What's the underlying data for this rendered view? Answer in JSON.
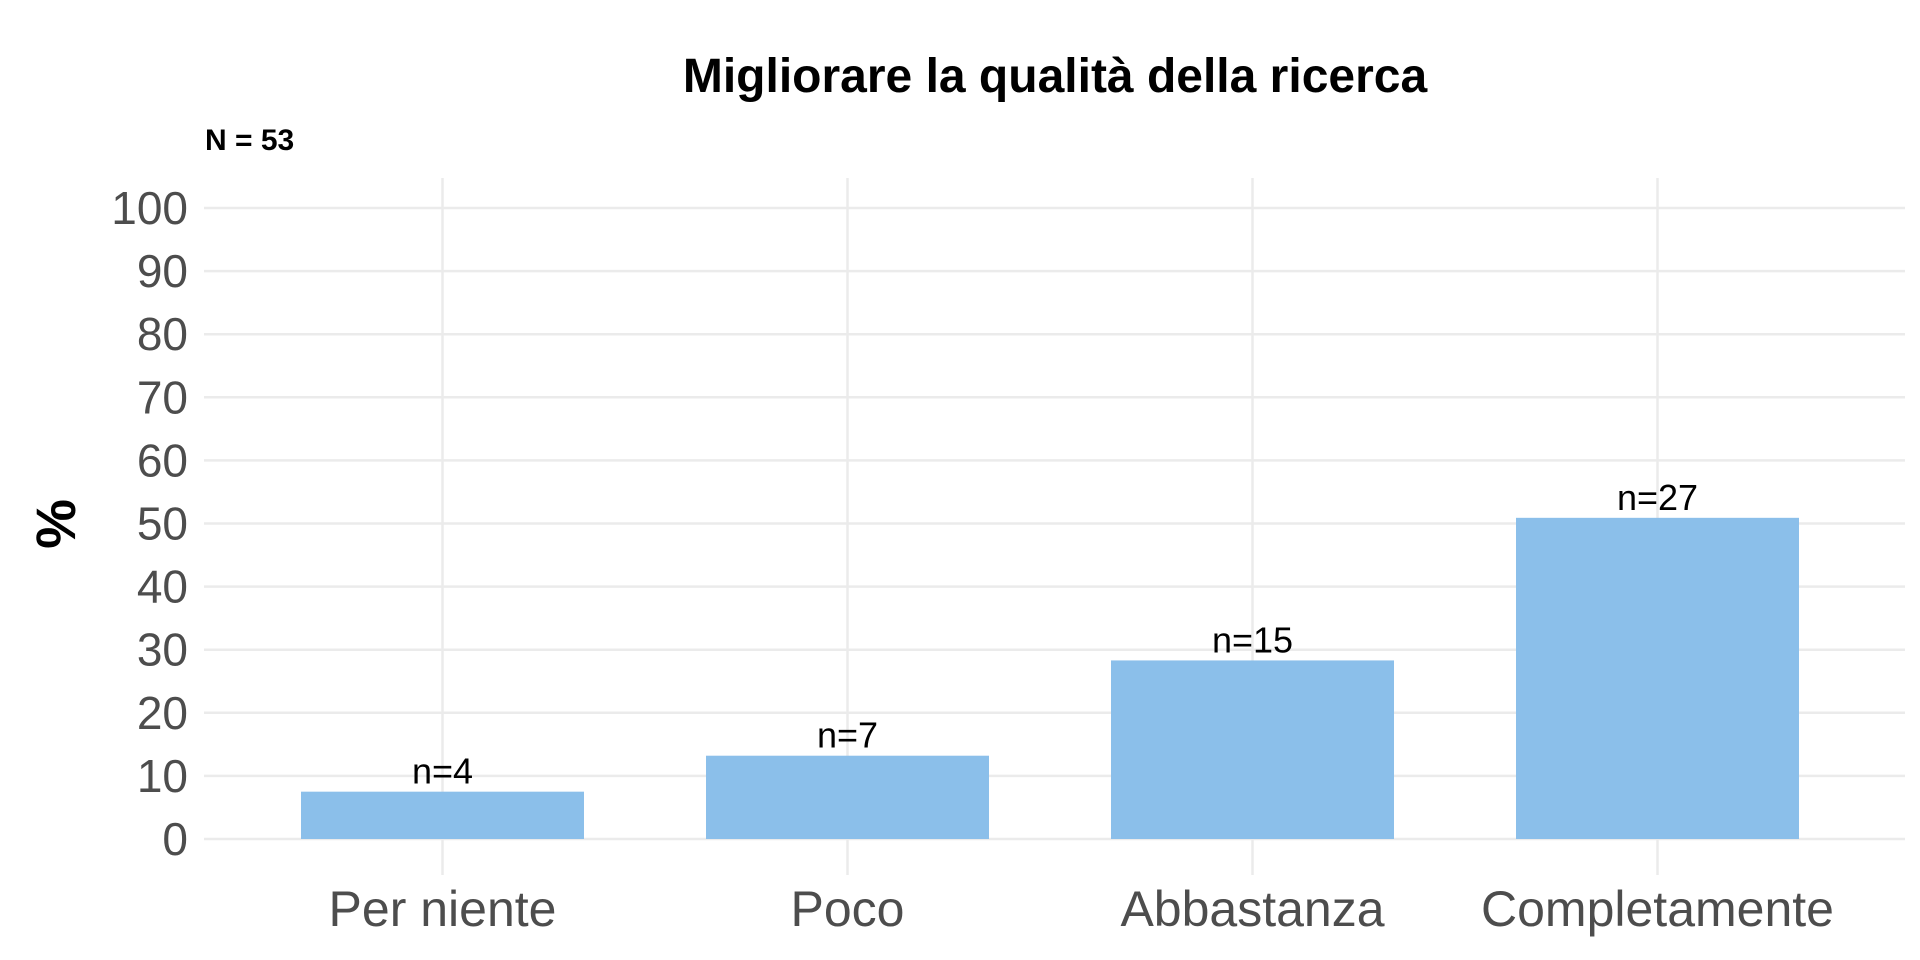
{
  "chart_data": {
    "type": "bar",
    "title": "Migliorare la qualità della ricerca",
    "subtitle": "N = 53",
    "xlabel": "",
    "ylabel": "%",
    "categories": [
      "Per niente",
      "Poco",
      "Abbastanza",
      "Completamente"
    ],
    "values": [
      7.5,
      13.2,
      28.3,
      50.9
    ],
    "data_labels": [
      "n=4",
      "n=7",
      "n=15",
      "n=27"
    ],
    "ylim": [
      0,
      100
    ],
    "yticks": [
      "0",
      "10",
      "20",
      "30",
      "40",
      "50",
      "60",
      "70",
      "80",
      "90",
      "100"
    ],
    "grid": true,
    "bar_color": "#8bbfea"
  }
}
